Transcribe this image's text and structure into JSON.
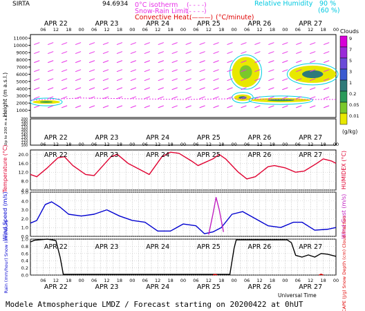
{
  "header": {
    "station": "SIRTA",
    "station_code": "94.6934",
    "legend_left": [
      {
        "label": "0°C isotherm",
        "sample": "(- - - -)",
        "color": "#e832e8"
      },
      {
        "label": "Snow-Rain Limit",
        "sample": "(- - - -)",
        "color": "#e832e8"
      },
      {
        "label": "Convective Heat.",
        "sample": "(———)",
        "unit": "(°C/minute)",
        "color": "#e00000"
      }
    ],
    "legend_right": [
      {
        "label": "Relative Humidity",
        "value": "90 %",
        "color": "#00d0e0"
      },
      {
        "label": "",
        "value": "(60 %)",
        "color": "#00d0e0"
      }
    ]
  },
  "days": [
    "APR 22",
    "APR 23",
    "APR 24",
    "APR 25",
    "APR 26",
    "APR 27"
  ],
  "hour_ticks": [
    "06",
    "12",
    "18",
    "00"
  ],
  "footer": {
    "title": "Modele Atmospherique LMDZ / Forecast starting on 20200422 at 0hUT",
    "universal_time": "Universal Time"
  },
  "cloud_scale": {
    "title": "Clouds",
    "unit": "(g/kg)",
    "levels": [
      "9",
      "7",
      "5",
      "3",
      "1",
      "0.2",
      "0.05",
      "0.01"
    ],
    "colors": [
      "#d800d8",
      "#9a2ad8",
      "#6a4ad8",
      "#3a5ad0",
      "#2f7a7a",
      "#2a9a5a",
      "#7ac82a",
      "#e8e800"
    ]
  },
  "chart_data": [
    {
      "type": "contour",
      "panel": "clouds",
      "ylabel": "Height (m a.s.l.)",
      "ylabel_low": "Up to 200 m a.s.l.",
      "yticks_upper": [
        1000,
        2000,
        3000,
        4000,
        5000,
        6000,
        7000,
        8000,
        9000,
        10000,
        11000
      ],
      "yticks_lower": [
        100,
        110,
        120,
        130,
        140,
        150,
        160,
        170,
        180,
        190,
        200
      ],
      "x_range_hours": [
        0,
        144
      ],
      "freezing_level": [
        {
          "t": 0,
          "h": 2400
        },
        {
          "t": 24,
          "h": 2700
        },
        {
          "t": 48,
          "h": 2600
        },
        {
          "t": 72,
          "h": 2500
        },
        {
          "t": 96,
          "h": 2600
        },
        {
          "t": 120,
          "h": 2500
        },
        {
          "t": 144,
          "h": 2500
        }
      ],
      "cloud_blobs": [
        {
          "t0": 1,
          "t1": 14,
          "h0": 1900,
          "h1": 2400,
          "level": "0.2"
        },
        {
          "t0": 95,
          "t1": 108,
          "h0": 4200,
          "h1": 8400,
          "level": "0.05"
        },
        {
          "t0": 96,
          "t1": 104,
          "h0": 2300,
          "h1": 3200,
          "level": "1"
        },
        {
          "t0": 104,
          "t1": 132,
          "h0": 2100,
          "h1": 2700,
          "level": "0.2"
        },
        {
          "t0": 122,
          "t1": 144,
          "h0": 4800,
          "h1": 7200,
          "level": "1"
        }
      ]
    },
    {
      "type": "line",
      "panel": "temperature",
      "ylabel": "Temperature (°C)",
      "ylabel_right": "HUMIDEX (°C)",
      "ylim": [
        4.0,
        22.0
      ],
      "yticks": [
        4.0,
        8.0,
        12.0,
        16.0,
        20.0
      ],
      "series": [
        {
          "name": "",
          "color": "#e00030",
          "points": [
            [
              0,
              11
            ],
            [
              3,
              10
            ],
            [
              8,
              14
            ],
            [
              13,
              18.5
            ],
            [
              16,
              19
            ],
            [
              20,
              15
            ],
            [
              26,
              11
            ],
            [
              30,
              10.5
            ],
            [
              38,
              19
            ],
            [
              41,
              20
            ],
            [
              46,
              16
            ],
            [
              52,
              13
            ],
            [
              56,
              11
            ],
            [
              62,
              19
            ],
            [
              66,
              21
            ],
            [
              70,
              20.5
            ],
            [
              76,
              17
            ],
            [
              79,
              15
            ],
            [
              86,
              18
            ],
            [
              89,
              20
            ],
            [
              92,
              18
            ],
            [
              98,
              12
            ],
            [
              102,
              9
            ],
            [
              106,
              10
            ],
            [
              112,
              14.5
            ],
            [
              115,
              15
            ],
            [
              120,
              14
            ],
            [
              125,
              12
            ],
            [
              129,
              12.5
            ],
            [
              135,
              16
            ],
            [
              138,
              18
            ],
            [
              142,
              17
            ],
            [
              144,
              16
            ]
          ]
        }
      ]
    },
    {
      "type": "line",
      "panel": "wind",
      "ylabel": "Wind Speed (m/s)",
      "ylabel_right": "Wind Gust (m/s)",
      "ylim": [
        0.0,
        5.0
      ],
      "yticks": [
        0.0,
        1.0,
        2.0,
        3.0,
        4.0,
        5.0
      ],
      "series": [
        {
          "name": "",
          "color": "#0000d0",
          "points": [
            [
              0,
              1.5
            ],
            [
              3,
              1.8
            ],
            [
              7,
              3.6
            ],
            [
              10,
              3.9
            ],
            [
              14,
              3.3
            ],
            [
              18,
              2.5
            ],
            [
              24,
              2.3
            ],
            [
              30,
              2.5
            ],
            [
              36,
              3.0
            ],
            [
              42,
              2.3
            ],
            [
              48,
              1.8
            ],
            [
              54,
              1.6
            ],
            [
              60,
              0.6
            ],
            [
              66,
              0.6
            ],
            [
              72,
              1.4
            ],
            [
              78,
              1.2
            ],
            [
              82,
              0.3
            ],
            [
              86,
              0.5
            ],
            [
              90,
              1.0
            ],
            [
              95,
              2.5
            ],
            [
              100,
              2.8
            ],
            [
              106,
              2.0
            ],
            [
              112,
              1.2
            ],
            [
              118,
              1.0
            ],
            [
              124,
              1.6
            ],
            [
              128,
              1.6
            ],
            [
              134,
              0.7
            ],
            [
              140,
              0.8
            ],
            [
              144,
              1.0
            ]
          ]
        },
        {
          "name": "",
          "color": "#c020c0",
          "points": [
            [
              84,
              0.2
            ],
            [
              86,
              2.5
            ],
            [
              87.5,
              4.4
            ],
            [
              89,
              3.0
            ],
            [
              91,
              0.5
            ]
          ]
        }
      ]
    },
    {
      "type": "line",
      "panel": "precip",
      "ylabel": "Rain (mm/hour) Snow (cm/hour)",
      "ylabel_right": "CAPE (J/g) Snow Depth (cm) Cloud Fraction",
      "ylim": [
        0.0,
        1.0
      ],
      "yticks": [
        0.0,
        0.2,
        0.4,
        0.6,
        0.8,
        1.0
      ],
      "series": [
        {
          "name": "",
          "color": "#000000",
          "points": [
            [
              0,
              0.92
            ],
            [
              2,
              0.97
            ],
            [
              8,
              1.0
            ],
            [
              12,
              0.96
            ],
            [
              14,
              0.5
            ],
            [
              15.5,
              0.02
            ],
            [
              94,
              0.02
            ],
            [
              96,
              0.75
            ],
            [
              97,
              0.98
            ],
            [
              121,
              0.98
            ],
            [
              123,
              0.9
            ],
            [
              125,
              0.55
            ],
            [
              128,
              0.5
            ],
            [
              131,
              0.56
            ],
            [
              134,
              0.5
            ],
            [
              137,
              0.6
            ],
            [
              140,
              0.58
            ],
            [
              144,
              0.52
            ]
          ]
        },
        {
          "name": "",
          "color": "#e00000",
          "points": [
            [
              86,
              0.0
            ],
            [
              87,
              0.02
            ],
            [
              88,
              0.0
            ]
          ]
        },
        {
          "name": "",
          "color": "#e00000",
          "points": [
            [
              136,
              0.0
            ],
            [
              137,
              0.025
            ],
            [
              138,
              0.0
            ]
          ]
        }
      ]
    }
  ]
}
